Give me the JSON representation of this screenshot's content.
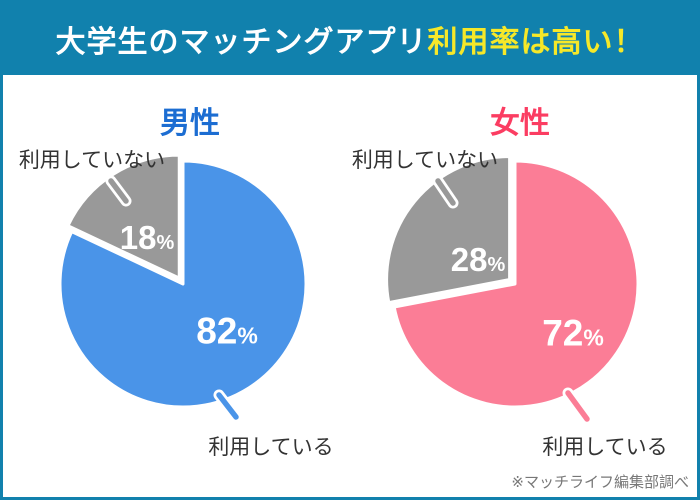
{
  "header": {
    "title_white": "大学生のマッチングアプリ",
    "title_yellow": "利用率は高い！"
  },
  "footnote": "※マッチライフ編集部調べ",
  "colors": {
    "banner": "#1181ad",
    "title_yellow": "#f6e829",
    "male_accent": "#1c6dd2",
    "female_accent": "#fb3d62",
    "male_slice": "#4a94e8",
    "female_slice": "#fb7d96",
    "gray_slice": "#999999",
    "label_text": "#333333",
    "percent_text": "#ffffff",
    "footnote_text": "#777777"
  },
  "chart_data": [
    {
      "type": "pie",
      "title": "男性",
      "unit": "%",
      "start_angle_deg": 0,
      "direction": "clockwise",
      "accent_key": "male_accent",
      "slices": [
        {
          "label": "利用している",
          "value": 82,
          "color_key": "male_slice"
        },
        {
          "label": "利用していない",
          "value": 18,
          "color_key": "gray_slice",
          "exploded": true
        }
      ]
    },
    {
      "type": "pie",
      "title": "女性",
      "unit": "%",
      "start_angle_deg": 0,
      "direction": "clockwise",
      "accent_key": "female_accent",
      "slices": [
        {
          "label": "利用している",
          "value": 72,
          "color_key": "female_slice"
        },
        {
          "label": "利用していない",
          "value": 28,
          "color_key": "gray_slice",
          "exploded": true
        }
      ]
    }
  ]
}
